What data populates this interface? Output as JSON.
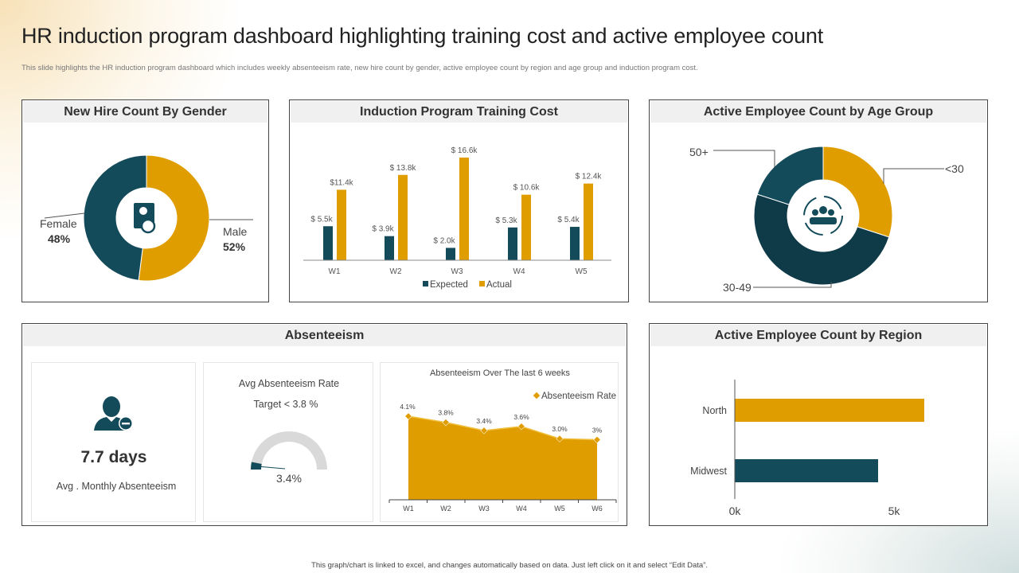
{
  "header": {
    "title": "HR induction program dashboard highlighting training cost and active employee count",
    "subtitle": "This slide highlights the HR  induction program dashboard which includes weekly absenteeism rate, new hire count by gender, active employee count by region and age group and induction program cost."
  },
  "footer": "This graph/chart is linked to excel, and changes automatically based on data. Just left click on it and select “Edit Data”.",
  "colors": {
    "teal": "#144b5b",
    "gold": "#e09d00",
    "gray": "#d9d9d9"
  },
  "panels": {
    "gender": {
      "title": "New Hire Count By Gender",
      "icon": "id-document-icon"
    },
    "cost": {
      "title": "Induction Program Training Cost"
    },
    "age": {
      "title": "Active Employee Count by Age Group",
      "icon": "team-cycle-icon"
    },
    "absenteeism": {
      "title": "Absenteeism",
      "kpi": {
        "icon": "user-minus-icon",
        "value": "7.7 days",
        "label": "Avg . Monthly Absenteeism"
      },
      "gauge": {
        "title": "Avg Absenteeism Rate",
        "target": "Target  < 3.8 %",
        "value_label": "3.4%",
        "value": 3.4
      }
    },
    "region": {
      "title": "Active Employee Count by Region"
    }
  },
  "chart_data": [
    {
      "type": "pie",
      "donut": true,
      "title": "New Hire Count By Gender",
      "labels": [
        "Male",
        "Female"
      ],
      "values": [
        52,
        48
      ],
      "value_labels": [
        "52%",
        "48%"
      ],
      "colors": [
        "#e09d00",
        "#144b5b"
      ]
    },
    {
      "type": "bar",
      "title": "Induction Program Training Cost",
      "categories": [
        "W1",
        "W2",
        "W3",
        "W4",
        "W5"
      ],
      "series": [
        {
          "name": "Expected",
          "values": [
            5.5,
            3.9,
            2.0,
            5.3,
            5.4
          ],
          "labels": [
            "$ 5.5k",
            "$ 3.9k",
            "$ 2.0k",
            "$ 5.3k",
            "$ 5.4k"
          ],
          "color": "#144b5b"
        },
        {
          "name": "Actual",
          "values": [
            11.4,
            13.8,
            16.6,
            10.6,
            12.4
          ],
          "labels": [
            "$11.4k",
            "$ 13.8k",
            "$ 16.6k",
            "$ 10.6k",
            "$ 12.4k"
          ],
          "color": "#e09d00"
        }
      ],
      "unit": "$k",
      "legend": "bottom"
    },
    {
      "type": "pie",
      "donut": true,
      "title": "Active Employee Count by Age Group",
      "labels": [
        "<30",
        "30-49",
        "50+"
      ],
      "values": [
        30,
        50,
        20
      ],
      "colors": [
        "#e09d00",
        "#0f3a47",
        "#144b5b"
      ]
    },
    {
      "type": "area",
      "title": "Absenteeism Over The last 6 weeks",
      "categories": [
        "W1",
        "W2",
        "W3",
        "W4",
        "W5",
        "W6"
      ],
      "series": [
        {
          "name": "Absenteeism Rate",
          "values": [
            4.1,
            3.8,
            3.4,
            3.6,
            3.0,
            2.95
          ],
          "labels": [
            "4.1%",
            "3.8%",
            "3.4%",
            "3.6%",
            "3.0%",
            "3%"
          ],
          "color": "#e09d00"
        }
      ],
      "ylim": [
        0,
        5
      ],
      "legend": "top-right"
    },
    {
      "type": "bar",
      "orientation": "horizontal",
      "title": "Active Employee Count by Region",
      "categories": [
        "North",
        "Midwest"
      ],
      "values": [
        5.95,
        4.5
      ],
      "colors": [
        "#e09d00",
        "#144b5b"
      ],
      "xticks": [
        "0k",
        "5k"
      ],
      "xtick_values": [
        0,
        5
      ]
    }
  ]
}
